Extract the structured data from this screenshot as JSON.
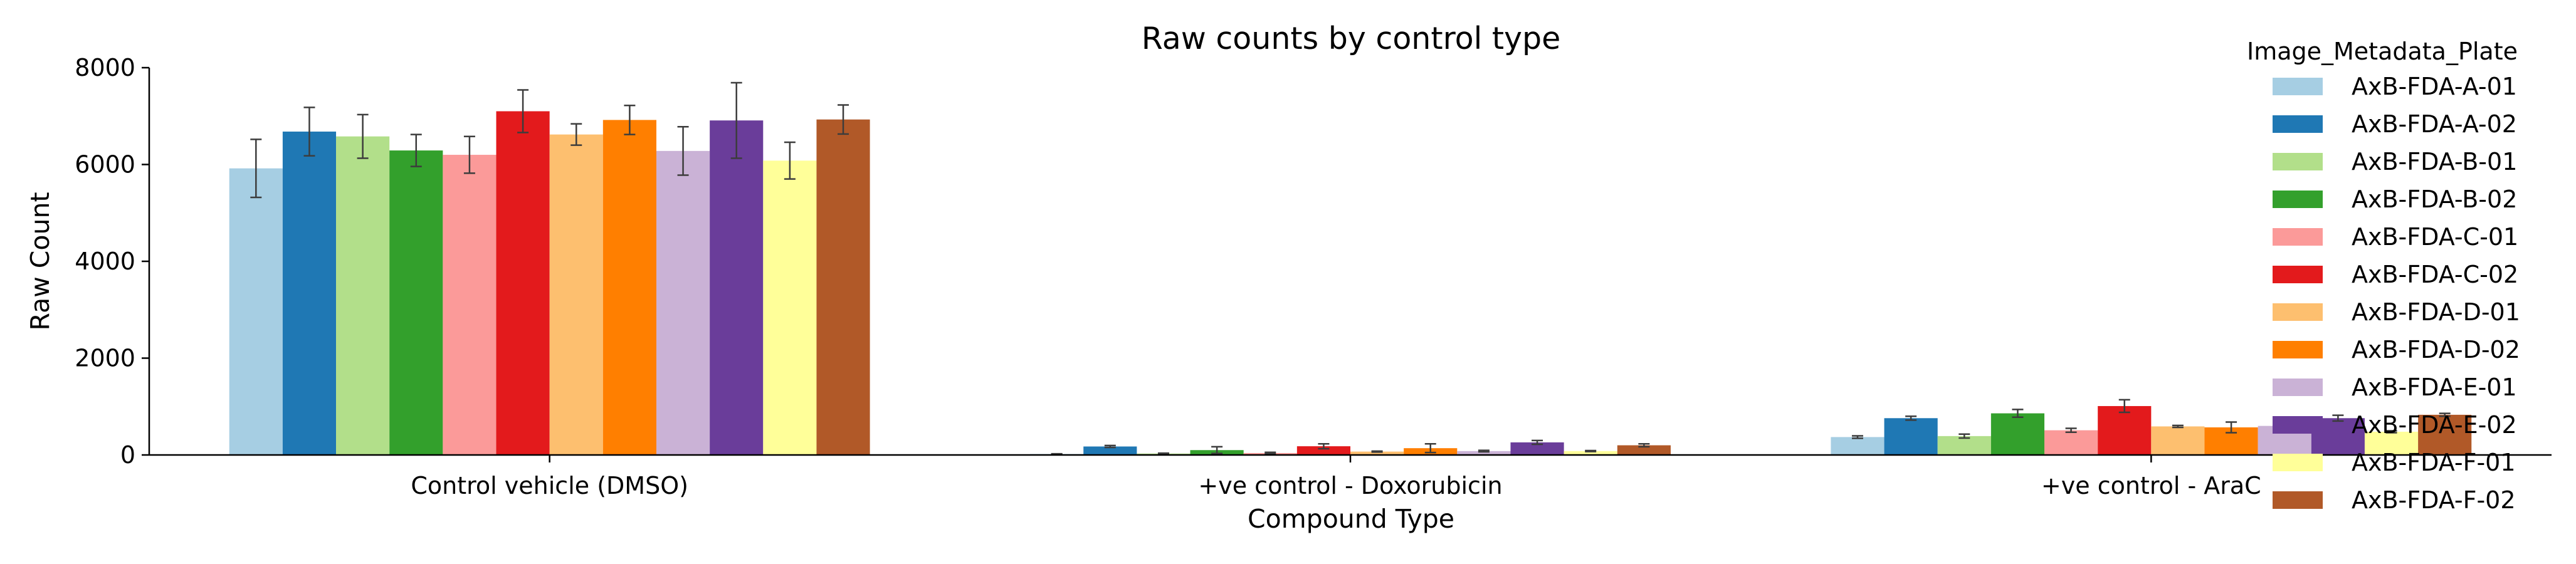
{
  "chart_data": {
    "type": "bar",
    "title": "Raw counts by control type",
    "xlabel": "Compound Type",
    "ylabel": "Raw Count",
    "ylim": [
      0,
      8000
    ],
    "yticks": [
      0,
      2000,
      4000,
      6000,
      8000
    ],
    "grid": false,
    "legend_title": "Image_Metadata_Plate",
    "legend_position": "top-right",
    "categories": [
      "Control vehicle (DMSO)",
      "+ve control - Doxorubicin",
      "+ve control - AraC"
    ],
    "series": [
      {
        "name": "AxB-FDA-A-01",
        "color": "#a6cee3",
        "values": [
          5920,
          20,
          370
        ],
        "errors": [
          600,
          5,
          25
        ]
      },
      {
        "name": "AxB-FDA-A-02",
        "color": "#1f78b4",
        "values": [
          6680,
          175,
          760
        ],
        "errors": [
          500,
          20,
          40
        ]
      },
      {
        "name": "AxB-FDA-B-01",
        "color": "#b2df8a",
        "values": [
          6580,
          30,
          390
        ],
        "errors": [
          450,
          8,
          40
        ]
      },
      {
        "name": "AxB-FDA-B-02",
        "color": "#33a02c",
        "values": [
          6290,
          100,
          860
        ],
        "errors": [
          330,
          70,
          80
        ]
      },
      {
        "name": "AxB-FDA-C-01",
        "color": "#fb9a99",
        "values": [
          6200,
          40,
          510
        ],
        "errors": [
          380,
          15,
          40
        ]
      },
      {
        "name": "AxB-FDA-C-02",
        "color": "#e31a1c",
        "values": [
          7100,
          180,
          1010
        ],
        "errors": [
          440,
          50,
          130
        ]
      },
      {
        "name": "AxB-FDA-D-01",
        "color": "#fdbf6f",
        "values": [
          6620,
          70,
          590
        ],
        "errors": [
          220,
          10,
          20
        ]
      },
      {
        "name": "AxB-FDA-D-02",
        "color": "#ff7f00",
        "values": [
          6920,
          140,
          570
        ],
        "errors": [
          300,
          90,
          110
        ]
      },
      {
        "name": "AxB-FDA-E-01",
        "color": "#cab2d6",
        "values": [
          6280,
          80,
          600
        ],
        "errors": [
          500,
          15,
          20
        ]
      },
      {
        "name": "AxB-FDA-E-02",
        "color": "#6a3d9a",
        "values": [
          6910,
          260,
          760
        ],
        "errors": [
          780,
          40,
          60
        ]
      },
      {
        "name": "AxB-FDA-F-01",
        "color": "#ffff99",
        "values": [
          6080,
          80,
          480
        ],
        "errors": [
          380,
          10,
          20
        ]
      },
      {
        "name": "AxB-FDA-F-02",
        "color": "#b15928",
        "values": [
          6930,
          200,
          830
        ],
        "errors": [
          300,
          30,
          30
        ]
      }
    ]
  }
}
